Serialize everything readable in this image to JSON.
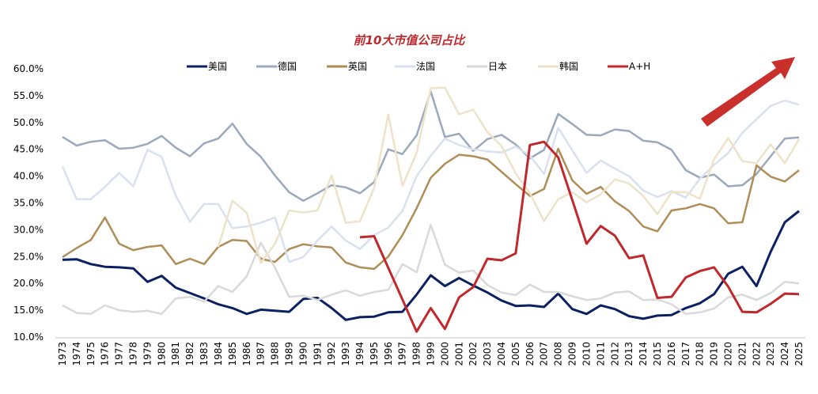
{
  "chart_data": {
    "type": "line",
    "title": "前10大市值公司占比",
    "xlabel": "",
    "ylabel": "",
    "ylim": [
      10,
      60
    ],
    "yticks": [
      "10.0%",
      "15.0%",
      "20.0%",
      "25.0%",
      "30.0%",
      "35.0%",
      "40.0%",
      "45.0%",
      "50.0%",
      "55.0%",
      "60.0%"
    ],
    "x": [
      1973,
      1974,
      1975,
      1976,
      1977,
      1978,
      1979,
      1980,
      1981,
      1982,
      1983,
      1984,
      1985,
      1986,
      1987,
      1988,
      1989,
      1990,
      1991,
      1992,
      1993,
      1994,
      1995,
      1996,
      1997,
      1998,
      1999,
      2000,
      2001,
      2002,
      2003,
      2004,
      2005,
      2006,
      2007,
      2008,
      2009,
      2010,
      2011,
      2012,
      2013,
      2014,
      2015,
      2016,
      2017,
      2018,
      2019,
      2020,
      2021,
      2022,
      2023,
      2024,
      2025
    ],
    "grid": false,
    "legend": "top",
    "series": [
      {
        "name": "美国",
        "color": "#0b2161",
        "width": 3,
        "values": [
          24.4,
          24.5,
          23.6,
          23.1,
          23.0,
          22.8,
          20.3,
          21.4,
          19.2,
          18.2,
          17.2,
          16.1,
          15.4,
          14.3,
          15.1,
          14.9,
          14.7,
          17.1,
          17.3,
          15.4,
          13.2,
          13.7,
          13.8,
          14.6,
          14.7,
          17.9,
          21.5,
          19.5,
          21.0,
          19.6,
          18.3,
          16.8,
          15.8,
          15.9,
          15.6,
          18.1,
          15.2,
          14.3,
          15.9,
          15.2,
          13.9,
          13.4,
          14.0,
          14.1,
          15.4,
          16.3,
          18.0,
          21.8,
          23.1,
          19.5,
          25.9,
          31.4,
          33.5
        ]
      },
      {
        "name": "德国",
        "color": "#9aa9bd",
        "width": 2.5,
        "values": [
          47.3,
          45.7,
          46.4,
          46.7,
          45.1,
          45.3,
          46.0,
          47.5,
          45.3,
          43.7,
          46.1,
          47.0,
          49.8,
          46.0,
          43.6,
          40.1,
          37.0,
          35.4,
          36.8,
          38.3,
          37.9,
          36.8,
          38.9,
          45.0,
          44.1,
          47.6,
          55.8,
          47.3,
          47.9,
          44.7,
          46.9,
          47.7,
          45.9,
          43.3,
          44.9,
          51.6,
          49.7,
          47.7,
          47.6,
          48.7,
          48.4,
          46.6,
          46.3,
          44.9,
          41.1,
          39.7,
          40.3,
          38.1,
          38.3,
          40.4,
          43.7,
          47.0,
          47.2
        ]
      },
      {
        "name": "英国",
        "color": "#b08d57",
        "width": 2.5,
        "values": [
          24.9,
          26.6,
          28.1,
          32.3,
          27.4,
          26.2,
          26.8,
          27.1,
          23.6,
          24.6,
          23.6,
          26.8,
          28.1,
          27.9,
          24.6,
          24.0,
          26.4,
          27.3,
          26.9,
          26.7,
          23.9,
          23.0,
          22.7,
          25.0,
          29.0,
          34.0,
          39.7,
          42.3,
          44.0,
          43.7,
          43.1,
          40.8,
          38.5,
          36.3,
          37.6,
          45.1,
          39.2,
          36.7,
          38.0,
          35.3,
          33.5,
          30.6,
          29.7,
          33.6,
          34.0,
          34.8,
          34.0,
          31.2,
          31.4,
          42.0,
          39.9,
          39.0,
          41.1
        ]
      },
      {
        "name": "法国",
        "color": "#d9e1f0",
        "width": 2.5,
        "values": [
          41.8,
          35.7,
          35.7,
          38.0,
          40.6,
          38.1,
          44.9,
          43.6,
          36.3,
          31.5,
          34.8,
          34.8,
          30.3,
          30.6,
          31.3,
          32.3,
          24.0,
          24.9,
          28.0,
          30.6,
          28.0,
          26.4,
          29.0,
          30.4,
          33.5,
          40.0,
          43.8,
          47.0,
          45.8,
          45.0,
          44.6,
          44.4,
          45.5,
          43.8,
          40.4,
          49.0,
          44.8,
          40.6,
          42.9,
          41.4,
          40.0,
          37.3,
          36.1,
          37.2,
          36.0,
          39.5,
          42.1,
          44.3,
          48.1,
          50.6,
          53.1,
          54.1,
          53.3
        ]
      },
      {
        "name": "日本",
        "color": "#d9d9d9",
        "width": 2.5,
        "values": [
          15.9,
          14.5,
          14.3,
          15.9,
          15.0,
          14.7,
          14.9,
          14.3,
          17.2,
          17.5,
          16.6,
          19.5,
          18.4,
          21.3,
          27.6,
          22.9,
          17.5,
          17.7,
          16.9,
          17.9,
          18.7,
          17.7,
          18.4,
          18.8,
          23.6,
          22.1,
          30.9,
          23.5,
          22.0,
          22.4,
          19.7,
          18.3,
          17.8,
          19.8,
          18.4,
          18.4,
          17.6,
          16.9,
          17.2,
          18.3,
          18.5,
          16.9,
          17.0,
          16.1,
          14.3,
          14.6,
          15.3,
          17.4,
          17.9,
          16.9,
          18.2,
          20.3,
          20.0
        ]
      },
      {
        "name": "韩国",
        "color": "#eee3c8",
        "width": 2.5,
        "values": [
          null,
          null,
          null,
          null,
          null,
          null,
          null,
          null,
          null,
          null,
          null,
          26.8,
          35.4,
          33.2,
          23.8,
          27.4,
          33.6,
          33.2,
          33.6,
          40.1,
          31.3,
          31.6,
          37.8,
          51.5,
          38.2,
          44.3,
          56.4,
          56.5,
          51.5,
          52.4,
          48.2,
          45.6,
          40.5,
          36.8,
          31.6,
          35.7,
          37.0,
          35.1,
          36.6,
          39.4,
          38.6,
          36.3,
          32.9,
          37.0,
          37.0,
          35.8,
          43.1,
          47.1,
          42.8,
          42.4,
          45.9,
          42.4,
          46.9
        ]
      },
      {
        "name": "A+H",
        "color": "#c0282c",
        "width": 3,
        "values": [
          null,
          null,
          null,
          null,
          null,
          null,
          null,
          null,
          null,
          null,
          null,
          null,
          null,
          null,
          null,
          null,
          null,
          null,
          null,
          null,
          null,
          28.6,
          28.8,
          22.9,
          17.0,
          11.0,
          15.4,
          11.5,
          17.4,
          19.3,
          24.6,
          24.3,
          25.6,
          45.8,
          46.4,
          43.5,
          35.5,
          27.4,
          30.7,
          28.9,
          24.7,
          25.2,
          17.3,
          17.5,
          21.1,
          22.3,
          23.0,
          19.4,
          14.7,
          14.6,
          16.2,
          18.1,
          18.0
        ]
      }
    ]
  }
}
